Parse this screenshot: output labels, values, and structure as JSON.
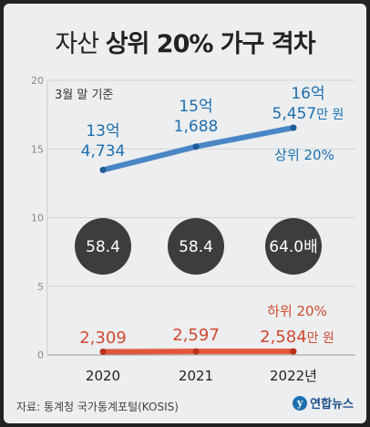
{
  "title": {
    "prefix": "자산",
    "main": "상위 20% 가구 격차"
  },
  "note": "3월 말 기준",
  "source": "자료: 통계청 국가통계포털(KOSIS)",
  "logo": {
    "mark": "y",
    "word": "연합뉴스"
  },
  "colors": {
    "top": "#4a86c5",
    "bottom": "#e2573c",
    "circle": "#3d3d3d"
  },
  "chart_data": {
    "type": "line",
    "xlabels": [
      "2020",
      "2021",
      "2022년"
    ],
    "yticks": [
      "0",
      "5",
      "10",
      "15",
      "20"
    ],
    "ylim": [
      0,
      20
    ],
    "series": [
      {
        "name": "상위 20%",
        "values": [
          13.4734,
          15.1688,
          16.5457
        ],
        "labels": [
          {
            "top": "13억",
            "bottom": "4,734",
            "unit": ""
          },
          {
            "top": "15억",
            "bottom": "1,688",
            "unit": ""
          },
          {
            "top": "16억",
            "bottom": "5,457",
            "unit": "만 원"
          }
        ]
      },
      {
        "name": "하위 20%",
        "values": [
          0.2309,
          0.2597,
          0.2584
        ],
        "labels": [
          {
            "value": "2,309",
            "unit": ""
          },
          {
            "value": "2,597",
            "unit": ""
          },
          {
            "value": "2,584",
            "unit": "만 원"
          }
        ]
      }
    ],
    "ratios": [
      "58.4",
      "58.4",
      "64.0배"
    ]
  }
}
